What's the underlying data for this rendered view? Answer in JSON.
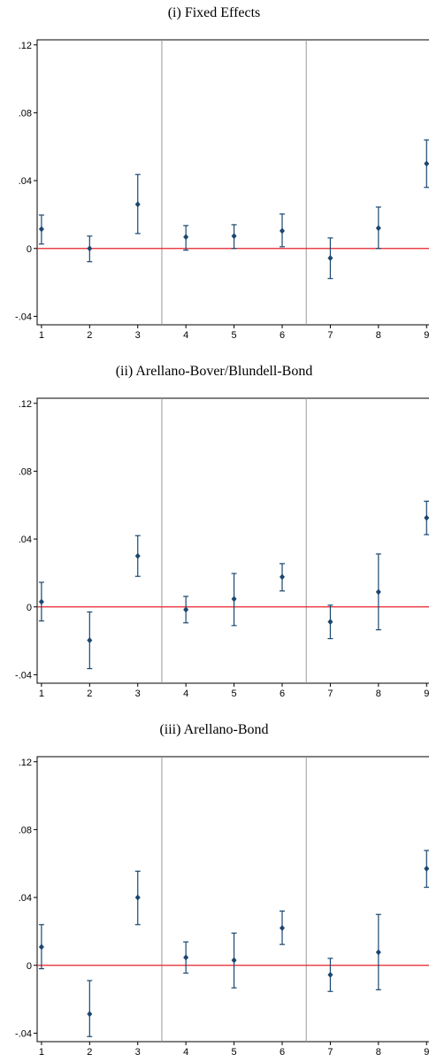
{
  "chart_data": [
    {
      "type": "errorbar",
      "title": "(i) Fixed Effects",
      "x": [
        1,
        2,
        3,
        4,
        5,
        6,
        7,
        8,
        9
      ],
      "values": [
        0.0114,
        0,
        0.026,
        0.0068,
        0.0073,
        0.0104,
        -0.0057,
        0.012,
        0.05
      ],
      "lower": [
        0.0026,
        -0.0078,
        0.0088,
        -0.001,
        0,
        0.001,
        -0.0177,
        0,
        0.036
      ],
      "upper": [
        0.0197,
        0.0073,
        0.0436,
        0.0135,
        0.014,
        0.0203,
        0.0062,
        0.0244,
        0.064
      ],
      "color": "#1a476f",
      "hline": 0,
      "hline_color": "#e8202a",
      "vlines": [
        3.5,
        6.5
      ],
      "vline_color": "#999999",
      "xlim": [
        0.91,
        9.05
      ],
      "ylim": [
        -0.045,
        0.123
      ],
      "xticks": [
        1,
        2,
        3,
        4,
        5,
        6,
        7,
        8,
        9
      ],
      "yticks": [
        {
          "value": -0.04,
          "label": "-.04"
        },
        0,
        {
          "value": 0.04,
          "label": ".04"
        },
        {
          "value": 0.08,
          "label": ".08"
        },
        {
          "value": 0.12,
          "label": ".12"
        }
      ]
    },
    {
      "type": "errorbar",
      "title": "(ii) Arellano-Bover/Blundell-Bond",
      "x": [
        1,
        2,
        3,
        4,
        5,
        6,
        7,
        8,
        9
      ],
      "values": [
        0.003,
        -0.0197,
        0.03,
        -0.0016,
        0.0047,
        0.0177,
        -0.0088,
        0.0088,
        0.0525
      ],
      "lower": [
        -0.0083,
        -0.0364,
        0.018,
        -0.0094,
        -0.011,
        0.0094,
        -0.0187,
        -0.0135,
        0.0426
      ],
      "upper": [
        0.0145,
        -0.003,
        0.042,
        0.0062,
        0.0197,
        0.0255,
        0.001,
        0.0312,
        0.0623
      ],
      "color": "#1a476f",
      "hline": 0,
      "hline_color": "#e8202a",
      "vlines": [
        3.5,
        6.5
      ],
      "vline_color": "#999999",
      "xlim": [
        0.91,
        9.05
      ],
      "ylim": [
        -0.045,
        0.123
      ],
      "xticks": [
        1,
        2,
        3,
        4,
        5,
        6,
        7,
        8,
        9
      ],
      "yticks": [
        {
          "value": -0.04,
          "label": "-.04"
        },
        0,
        {
          "value": 0.04,
          "label": ".04"
        },
        {
          "value": 0.08,
          "label": ".08"
        },
        {
          "value": 0.12,
          "label": ".12"
        }
      ]
    },
    {
      "type": "errorbar",
      "title": "(iii) Arellano-Bond",
      "x": [
        1,
        2,
        3,
        4,
        5,
        6,
        7,
        8,
        9
      ],
      "values": [
        0.0108,
        -0.0287,
        0.04,
        0.0046,
        0.003,
        0.022,
        -0.0056,
        0.0077,
        0.057
      ],
      "lower": [
        -0.002,
        -0.042,
        0.024,
        -0.0046,
        -0.0133,
        0.0123,
        -0.0154,
        -0.0144,
        0.046
      ],
      "upper": [
        0.024,
        -0.009,
        0.0555,
        0.0138,
        0.019,
        0.032,
        0.0041,
        0.03,
        0.0677
      ],
      "color": "#1a476f",
      "hline": 0,
      "hline_color": "#e8202a",
      "vlines": [
        3.5,
        6.5
      ],
      "vline_color": "#999999",
      "xlim": [
        0.91,
        9.05
      ],
      "ylim": [
        -0.045,
        0.123
      ],
      "xticks": [
        1,
        2,
        3,
        4,
        5,
        6,
        7,
        8,
        9
      ],
      "yticks": [
        {
          "value": -0.04,
          "label": "-.04"
        },
        0,
        {
          "value": 0.04,
          "label": ".04"
        },
        {
          "value": 0.08,
          "label": ".08"
        },
        {
          "value": 0.12,
          "label": ".12"
        }
      ]
    }
  ]
}
